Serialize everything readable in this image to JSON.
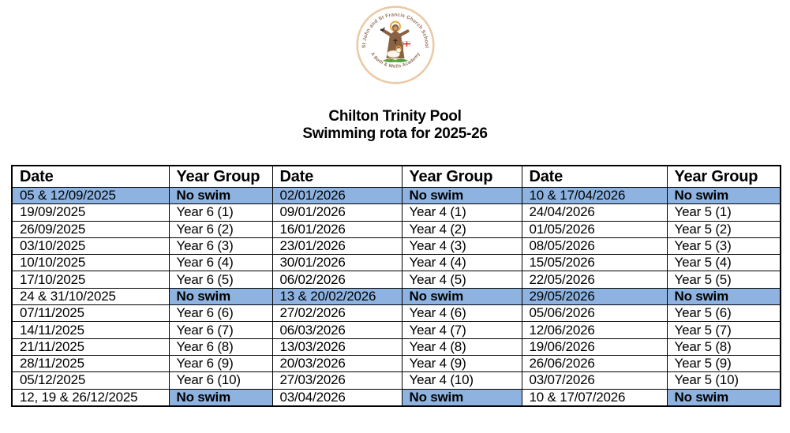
{
  "logo": {
    "top_text": "St John and St Francis Church School",
    "bottom_text": "A Bath & Wells Academy"
  },
  "title": {
    "line1": "Chilton Trinity Pool",
    "line2": "Swimming rota for 2025-26"
  },
  "colors": {
    "highlight": "#8EB3E0",
    "table_border": "#000000",
    "logo_ring": "#EACBA6",
    "logo_text": "#94705a",
    "robe_brown": "#8A6142",
    "halo_gold": "#E2A13C",
    "grass_green": "#55A03E",
    "flag_red": "#D22B2B"
  },
  "table": {
    "headers": [
      "Date",
      "Year Group",
      "Date",
      "Year Group",
      "Date",
      "Year Group"
    ],
    "rows": [
      {
        "cells": [
          "05 & 12/09/2025",
          "No swim",
          "02/01/2026",
          "No swim",
          "10 & 17/04/2026",
          "No swim"
        ],
        "highlight": [
          true,
          true,
          true,
          true,
          true,
          true
        ],
        "bold": [
          false,
          true,
          false,
          true,
          false,
          true
        ]
      },
      {
        "cells": [
          "19/09/2025",
          "Year 6 (1)",
          "09/01/2026",
          "Year 4 (1)",
          "24/04/2026",
          "Year 5 (1)"
        ],
        "highlight": [
          false,
          false,
          false,
          false,
          false,
          false
        ],
        "bold": [
          false,
          false,
          false,
          false,
          false,
          false
        ]
      },
      {
        "cells": [
          "26/09/2025",
          "Year 6 (2)",
          "16/01/2026",
          "Year 4 (2)",
          "01/05/2026",
          "Year 5 (2)"
        ],
        "highlight": [
          false,
          false,
          false,
          false,
          false,
          false
        ],
        "bold": [
          false,
          false,
          false,
          false,
          false,
          false
        ]
      },
      {
        "cells": [
          "03/10/2025",
          "Year 6 (3)",
          "23/01/2026",
          "Year 4 (3)",
          "08/05/2026",
          "Year 5 (3)"
        ],
        "highlight": [
          false,
          false,
          false,
          false,
          false,
          false
        ],
        "bold": [
          false,
          false,
          false,
          false,
          false,
          false
        ]
      },
      {
        "cells": [
          "10/10/2025",
          "Year 6 (4)",
          "30/01/2026",
          "Year 4 (4)",
          "15/05/2026",
          "Year 5 (4)"
        ],
        "highlight": [
          false,
          false,
          false,
          false,
          false,
          false
        ],
        "bold": [
          false,
          false,
          false,
          false,
          false,
          false
        ]
      },
      {
        "cells": [
          "17/10/2025",
          "Year 6 (5)",
          "06/02/2026",
          "Year 4 (5)",
          "22/05/2026",
          "Year 5 (5)"
        ],
        "highlight": [
          false,
          false,
          false,
          false,
          false,
          false
        ],
        "bold": [
          false,
          false,
          false,
          false,
          false,
          false
        ]
      },
      {
        "cells": [
          "24 & 31/10/2025",
          "No swim",
          "13 & 20/02/2026",
          "No swim",
          "29/05/2026",
          "No swim"
        ],
        "highlight": [
          false,
          true,
          true,
          true,
          true,
          true
        ],
        "bold": [
          false,
          true,
          false,
          true,
          false,
          true
        ]
      },
      {
        "cells": [
          "07/11/2025",
          "Year 6 (6)",
          "27/02/2026",
          "Year 4 (6)",
          "05/06/2026",
          "Year 5 (6)"
        ],
        "highlight": [
          false,
          false,
          false,
          false,
          false,
          false
        ],
        "bold": [
          false,
          false,
          false,
          false,
          false,
          false
        ]
      },
      {
        "cells": [
          "14/11/2025",
          "Year 6 (7)",
          "06/03/2026",
          "Year 4 (7)",
          "12/06/2026",
          "Year 5 (7)"
        ],
        "highlight": [
          false,
          false,
          false,
          false,
          false,
          false
        ],
        "bold": [
          false,
          false,
          false,
          false,
          false,
          false
        ]
      },
      {
        "cells": [
          "21/11/2025",
          "Year 6 (8)",
          "13/03/2026",
          "Year 4 (8)",
          "19/06/2026",
          "Year 5 (8)"
        ],
        "highlight": [
          false,
          false,
          false,
          false,
          false,
          false
        ],
        "bold": [
          false,
          false,
          false,
          false,
          false,
          false
        ]
      },
      {
        "cells": [
          "28/11/2025",
          "Year 6 (9)",
          "20/03/2026",
          "Year 4 (9)",
          "26/06/2026",
          "Year 5 (9)"
        ],
        "highlight": [
          false,
          false,
          false,
          false,
          false,
          false
        ],
        "bold": [
          false,
          false,
          false,
          false,
          false,
          false
        ]
      },
      {
        "cells": [
          "05/12/2025",
          "Year 6 (10)",
          "27/03/2026",
          "Year 4 (10)",
          "03/07/2026",
          "Year 5 (10)"
        ],
        "highlight": [
          false,
          false,
          false,
          false,
          false,
          false
        ],
        "bold": [
          false,
          false,
          false,
          false,
          false,
          false
        ]
      },
      {
        "cells": [
          "12, 19 & 26/12/2025",
          "No swim",
          "03/04/2026",
          "No swim",
          "10 & 17/07/2026",
          "No swim"
        ],
        "highlight": [
          false,
          true,
          false,
          true,
          false,
          true
        ],
        "bold": [
          false,
          true,
          false,
          true,
          false,
          true
        ]
      }
    ]
  }
}
